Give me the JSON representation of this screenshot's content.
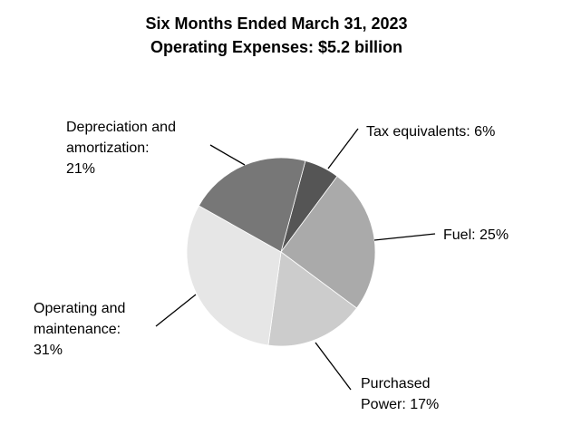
{
  "chart_data": {
    "type": "pie",
    "title": [
      "Six Months Ended March 31, 2023",
      "Operating Expenses: $5.2 billion"
    ],
    "values": [
      6,
      25,
      17,
      31,
      21
    ],
    "value_labels": [
      [
        "Tax equivalents: 6%"
      ],
      [
        "Fuel: 25%"
      ],
      [
        "Purchased",
        "Power: 17%"
      ],
      [
        "Operating and",
        "maintenance:",
        "31%"
      ],
      [
        "Depreciation and",
        "amortization:",
        "21%"
      ]
    ],
    "colors": [
      "#555555",
      "#aaaaaa",
      "#cccccc",
      "#e6e6e6",
      "#777777"
    ]
  }
}
